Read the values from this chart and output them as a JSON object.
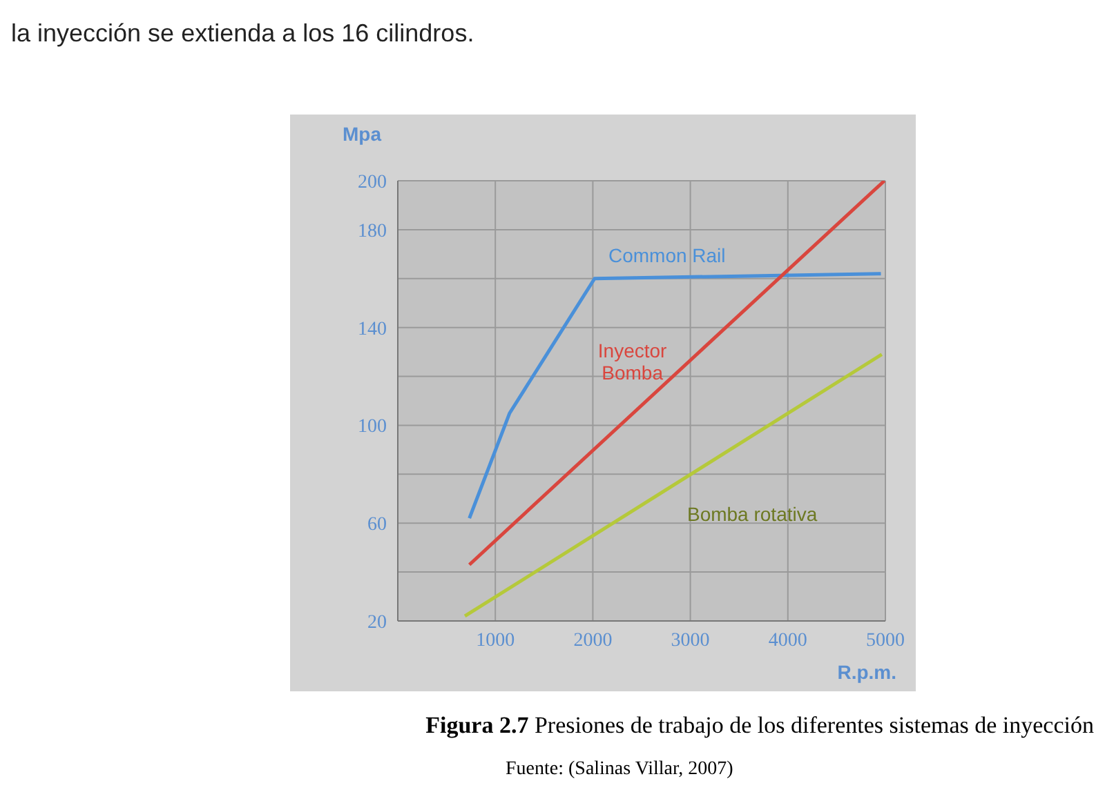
{
  "chart_data": {
    "type": "line",
    "xlabel": "R.p.m.",
    "ylabel": "Mpa",
    "annotations": [
      "la inyección se extienda a los 16 cilindros.",
      "Figura 2.7",
      "Presiones de trabajo de los diferentes sistemas de inyección",
      "Fuente: (Salinas Villar, 2007)"
    ],
    "series": [
      {
        "name": "Common Rail",
        "color": "#4a90d9",
        "x": [
          734,
          1147,
          2018,
          4954
        ],
        "values": [
          62,
          105,
          160,
          162
        ]
      },
      {
        "name": "Inyector Bomba",
        "color": "#d9463e",
        "x": [
          734,
          4990
        ],
        "values": [
          43,
          200
        ]
      },
      {
        "name": "Bomba rotativa",
        "color": "#b5c93a",
        "x": [
          688,
          4963
        ],
        "values": [
          22,
          129
        ]
      }
    ],
    "xlim": [
      0,
      5000
    ],
    "xticks": [
      1000,
      2000,
      3000,
      4000,
      5000
    ],
    "ylim": [
      20,
      200
    ],
    "yticks": [
      20,
      {
        "value": 40,
        "label": null
      },
      60,
      {
        "value": 80,
        "label": null
      },
      100,
      {
        "value": 120,
        "label": null
      },
      140,
      {
        "value": 160,
        "label": null
      },
      180,
      200
    ],
    "grid": true,
    "legend": false,
    "marker": "none",
    "line_style": "solid"
  }
}
